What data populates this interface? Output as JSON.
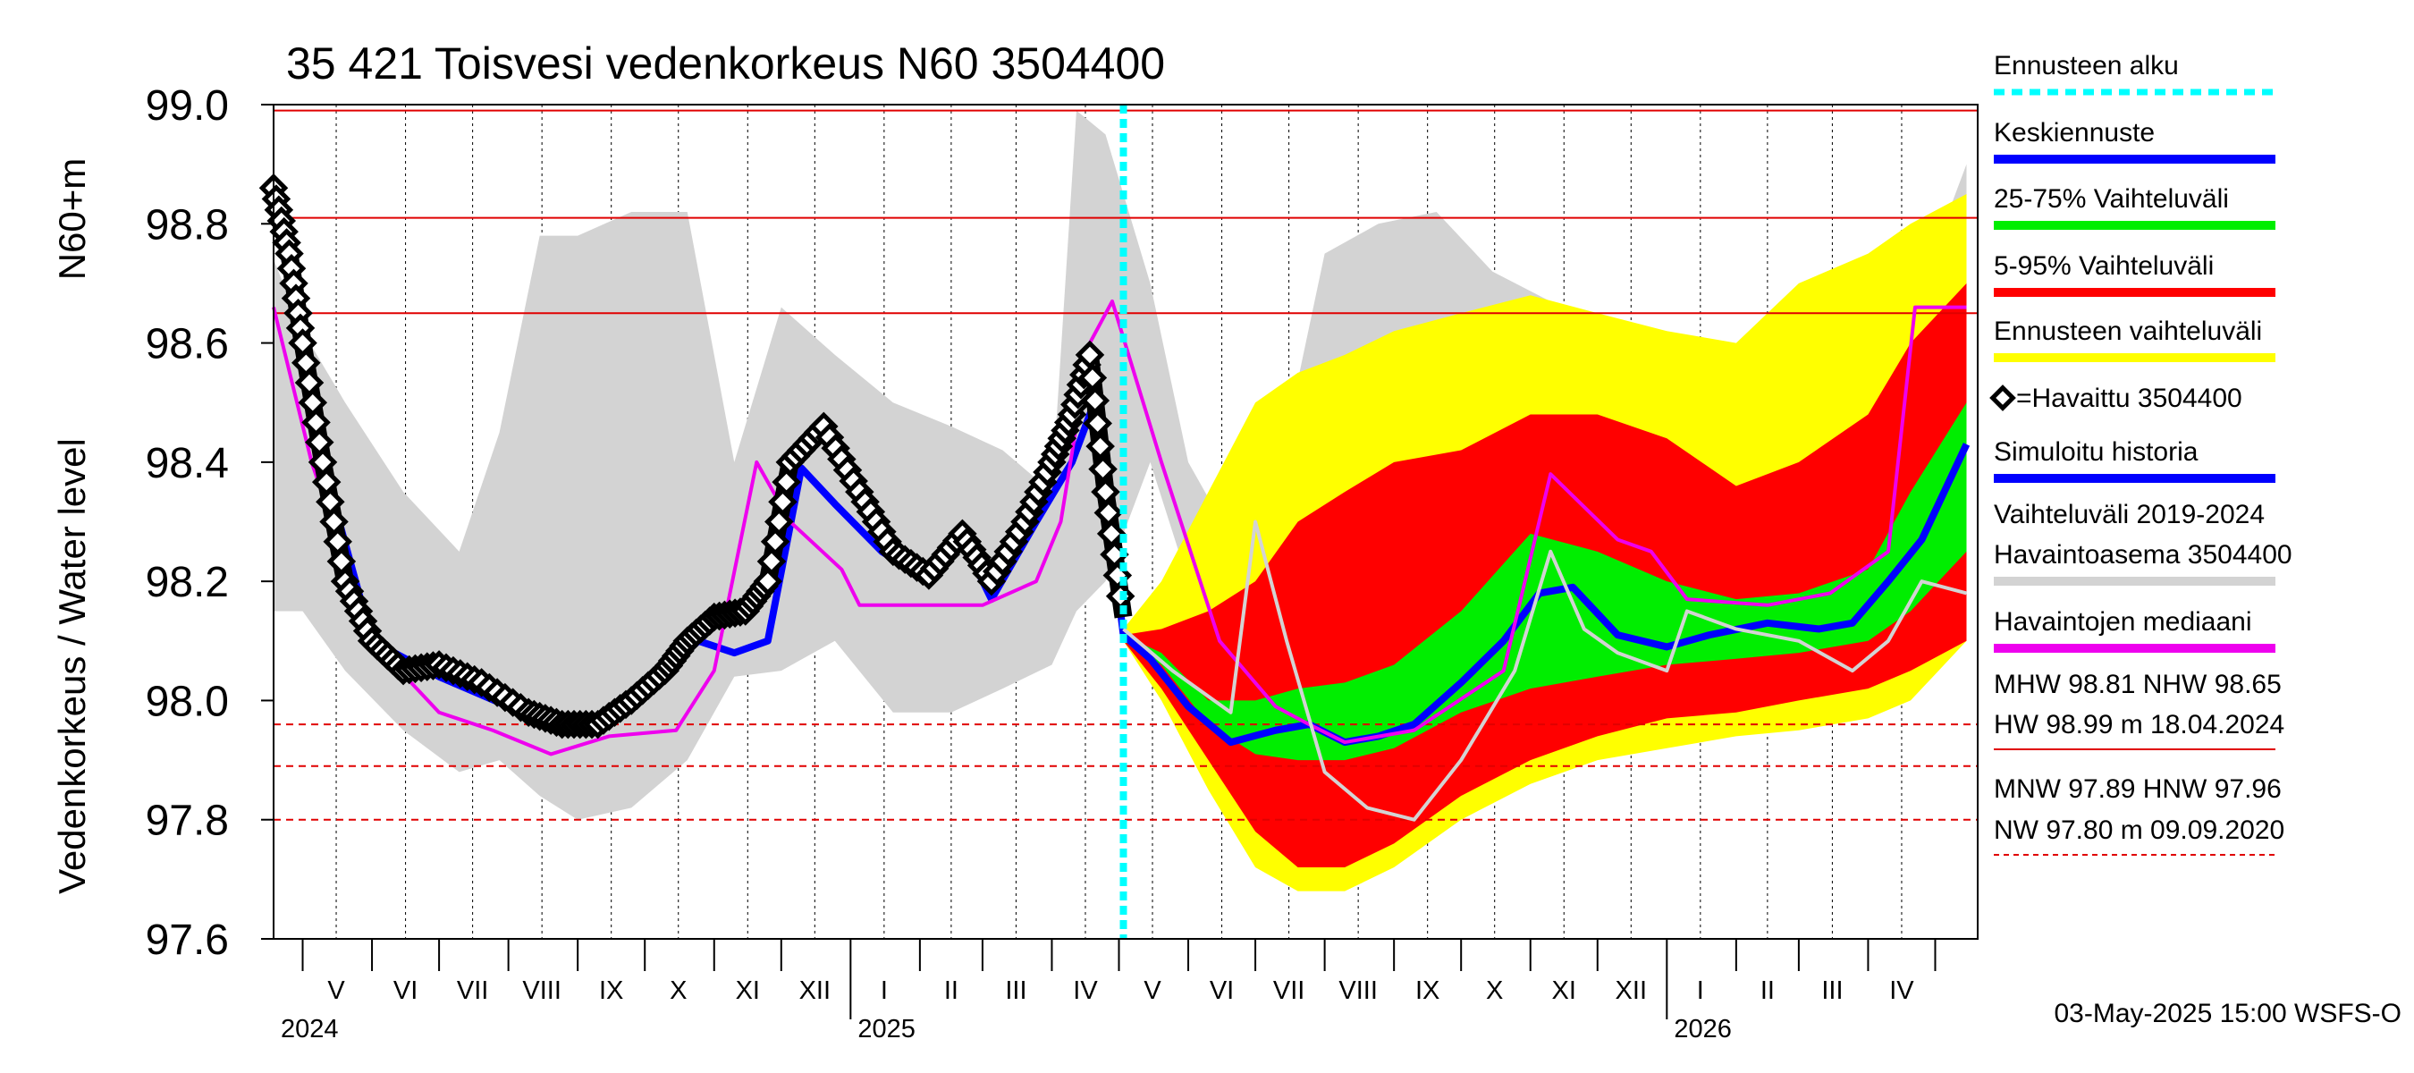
{
  "chart_data": {
    "type": "area",
    "title": "35 421 Toisvesi vedenkorkeus N60 3504400",
    "ylabel": "Vedenkorkeus / Water level",
    "ylabel_unit": "N60+m",
    "ylim": [
      97.6,
      99.0
    ],
    "yticks": [
      "99.0",
      "98.8",
      "98.6",
      "98.4",
      "98.2",
      "98.0",
      "97.8",
      "97.6"
    ],
    "x_start": "2024-04-18",
    "x_end": "2026-05-20",
    "forecast_start": "2025-05-03",
    "months": [
      {
        "label": "V",
        "date": "2024-05-16"
      },
      {
        "label": "VI",
        "date": "2024-06-16"
      },
      {
        "label": "VII",
        "date": "2024-07-16"
      },
      {
        "label": "VIII",
        "date": "2024-08-16"
      },
      {
        "label": "IX",
        "date": "2024-09-16"
      },
      {
        "label": "X",
        "date": "2024-10-16"
      },
      {
        "label": "XI",
        "date": "2024-11-16"
      },
      {
        "label": "XII",
        "date": "2024-12-16"
      },
      {
        "label": "I",
        "date": "2025-01-16"
      },
      {
        "label": "II",
        "date": "2025-02-15"
      },
      {
        "label": "III",
        "date": "2025-03-16"
      },
      {
        "label": "IV",
        "date": "2025-04-16"
      },
      {
        "label": "V",
        "date": "2025-05-16"
      },
      {
        "label": "VI",
        "date": "2025-06-16"
      },
      {
        "label": "VII",
        "date": "2025-07-16"
      },
      {
        "label": "VIII",
        "date": "2025-08-16"
      },
      {
        "label": "IX",
        "date": "2025-09-16"
      },
      {
        "label": "X",
        "date": "2025-10-16"
      },
      {
        "label": "XI",
        "date": "2025-11-16"
      },
      {
        "label": "XII",
        "date": "2025-12-16"
      },
      {
        "label": "I",
        "date": "2026-01-16"
      },
      {
        "label": "II",
        "date": "2026-02-15"
      },
      {
        "label": "III",
        "date": "2026-03-16"
      },
      {
        "label": "IV",
        "date": "2026-04-16"
      }
    ],
    "years": [
      {
        "label": "2024",
        "date": "2024-04-18"
      },
      {
        "label": "2025",
        "date": "2025-01-01"
      },
      {
        "label": "2026",
        "date": "2026-01-01"
      }
    ],
    "ref_lines": [
      {
        "name": "HW",
        "value": 98.99,
        "style": "solid"
      },
      {
        "name": "MHW",
        "value": 98.81,
        "style": "solid"
      },
      {
        "name": "NHW",
        "value": 98.65,
        "style": "solid"
      },
      {
        "name": "HNW",
        "value": 97.96,
        "style": "dashed"
      },
      {
        "name": "MNW",
        "value": 97.89,
        "style": "dashed"
      },
      {
        "name": "NW",
        "value": 97.8,
        "style": "dashed"
      }
    ],
    "series": [
      {
        "name": "Vaihteluväli 2019-2024 Havaintoasema 3504400",
        "color": "#d3d3d3",
        "x": [
          "2024-04-18",
          "2024-05-01",
          "2024-05-20",
          "2024-06-15",
          "2024-07-10",
          "2024-07-28",
          "2024-08-15",
          "2024-09-01",
          "2024-09-25",
          "2024-10-20",
          "2024-11-10",
          "2024-12-01",
          "2024-12-25",
          "2025-01-20",
          "2025-02-15",
          "2025-03-10",
          "2025-04-01",
          "2025-04-12",
          "2025-04-25",
          "2025-05-15",
          "2025-06-01",
          "2025-07-01",
          "2025-08-01",
          "2025-08-25",
          "2025-09-20",
          "2025-10-15",
          "2025-11-15",
          "2025-12-15",
          "2026-01-15",
          "2026-02-15",
          "2026-03-15",
          "2026-04-15",
          "2026-05-15"
        ],
        "upper": [
          98.74,
          98.62,
          98.5,
          98.35,
          98.25,
          98.45,
          98.78,
          98.78,
          98.82,
          98.82,
          98.4,
          98.66,
          98.58,
          98.5,
          98.46,
          98.42,
          98.35,
          98.99,
          98.95,
          98.7,
          98.4,
          98.2,
          98.75,
          98.8,
          98.82,
          98.72,
          98.66,
          98.58,
          98.55,
          98.5,
          98.5,
          98.6,
          98.9
        ],
        "lower": [
          98.15,
          98.15,
          98.05,
          97.95,
          97.88,
          97.9,
          97.84,
          97.8,
          97.82,
          97.9,
          98.04,
          98.05,
          98.1,
          97.98,
          97.98,
          98.02,
          98.06,
          98.15,
          98.2,
          98.4,
          98.2,
          97.96,
          97.85,
          97.84,
          97.85,
          97.86,
          98.0,
          98.02,
          98.01,
          98.01,
          98.01,
          98.0,
          98.15
        ]
      },
      {
        "name": "Ennusteen vaihteluväli",
        "color": "#ffff00",
        "x": [
          "2025-05-03",
          "2025-05-20",
          "2025-06-10",
          "2025-07-01",
          "2025-07-20",
          "2025-08-10",
          "2025-09-01",
          "2025-10-01",
          "2025-11-01",
          "2025-12-01",
          "2026-01-01",
          "2026-02-01",
          "2026-03-01",
          "2026-04-01",
          "2026-04-20",
          "2026-05-15"
        ],
        "upper": [
          98.12,
          98.2,
          98.35,
          98.5,
          98.55,
          98.58,
          98.62,
          98.65,
          98.68,
          98.65,
          98.62,
          98.6,
          98.7,
          98.75,
          98.8,
          98.85
        ],
        "lower": [
          98.1,
          98.0,
          97.85,
          97.72,
          97.68,
          97.68,
          97.72,
          97.8,
          97.86,
          97.9,
          97.92,
          97.94,
          97.95,
          97.97,
          98.0,
          98.1
        ]
      },
      {
        "name": "5-95% Vaihteluväli",
        "color": "#ff0000",
        "x": [
          "2025-05-03",
          "2025-05-20",
          "2025-06-10",
          "2025-07-01",
          "2025-07-20",
          "2025-08-10",
          "2025-09-01",
          "2025-10-01",
          "2025-11-01",
          "2025-12-01",
          "2026-01-01",
          "2026-02-01",
          "2026-03-01",
          "2026-04-01",
          "2026-04-20",
          "2026-05-15"
        ],
        "upper": [
          98.11,
          98.12,
          98.15,
          98.2,
          98.3,
          98.35,
          98.4,
          98.42,
          98.48,
          98.48,
          98.44,
          98.36,
          98.4,
          98.48,
          98.6,
          98.7
        ],
        "lower": [
          98.1,
          98.02,
          97.9,
          97.78,
          97.72,
          97.72,
          97.76,
          97.84,
          97.9,
          97.94,
          97.97,
          97.98,
          98.0,
          98.02,
          98.05,
          98.1
        ]
      },
      {
        "name": "25-75% Vaihteluväli",
        "color": "#00ee00",
        "x": [
          "2025-05-03",
          "2025-05-20",
          "2025-06-10",
          "2025-07-01",
          "2025-07-20",
          "2025-08-10",
          "2025-09-01",
          "2025-10-01",
          "2025-11-01",
          "2025-12-01",
          "2026-01-01",
          "2026-02-01",
          "2026-03-01",
          "2026-04-01",
          "2026-04-20",
          "2026-05-15"
        ],
        "upper": [
          98.11,
          98.08,
          98.0,
          98.0,
          98.02,
          98.03,
          98.06,
          98.15,
          98.28,
          98.25,
          98.2,
          98.17,
          98.18,
          98.22,
          98.35,
          98.5
        ],
        "lower": [
          98.1,
          98.06,
          97.96,
          97.91,
          97.9,
          97.9,
          97.92,
          97.98,
          98.02,
          98.04,
          98.06,
          98.07,
          98.08,
          98.1,
          98.15,
          98.25
        ]
      },
      {
        "name": "Keskiennuste",
        "color": "#0000ff",
        "x": [
          "2025-05-03",
          "2025-05-15",
          "2025-06-01",
          "2025-06-20",
          "2025-07-10",
          "2025-07-25",
          "2025-08-10",
          "2025-08-25",
          "2025-09-10",
          "2025-10-01",
          "2025-10-20",
          "2025-11-05",
          "2025-11-20",
          "2025-12-10",
          "2026-01-01",
          "2026-01-20",
          "2026-02-15",
          "2026-03-10",
          "2026-03-25",
          "2026-04-10",
          "2026-04-25",
          "2026-05-15"
        ],
        "y": [
          98.11,
          98.07,
          97.99,
          97.93,
          97.95,
          97.96,
          97.93,
          97.94,
          97.96,
          98.03,
          98.1,
          98.18,
          98.19,
          98.11,
          98.09,
          98.11,
          98.13,
          98.12,
          98.13,
          98.2,
          98.27,
          98.43
        ]
      },
      {
        "name": "Simuloitu historia",
        "color": "#0000ff",
        "x": [
          "2024-04-18",
          "2024-05-10",
          "2024-06-01",
          "2024-07-01",
          "2024-08-01",
          "2024-09-01",
          "2024-10-01",
          "2024-10-25",
          "2024-11-10",
          "2024-11-25",
          "2024-12-10",
          "2024-12-25",
          "2025-01-15",
          "2025-02-01",
          "2025-02-20",
          "2025-03-05",
          "2025-03-25",
          "2025-04-10",
          "2025-04-20",
          "2025-05-03"
        ],
        "y": [
          98.84,
          98.4,
          98.1,
          98.04,
          97.99,
          97.95,
          98.02,
          98.1,
          98.08,
          98.1,
          98.39,
          98.33,
          98.25,
          98.21,
          98.27,
          98.17,
          98.3,
          98.4,
          98.5,
          98.11
        ]
      },
      {
        "name": "Havaintojen mediaani",
        "color": "#ee00ee",
        "x": [
          "2024-04-18",
          "2024-05-05",
          "2024-06-01",
          "2024-07-01",
          "2024-07-25",
          "2024-08-20",
          "2024-09-15",
          "2024-10-15",
          "2024-11-01",
          "2024-11-20",
          "2024-12-05",
          "2024-12-28",
          "2025-01-05",
          "2025-02-01",
          "2025-03-01",
          "2025-03-25",
          "2025-04-05",
          "2025-04-18",
          "2025-04-28",
          "2025-05-20",
          "2025-06-15",
          "2025-07-10",
          "2025-07-25",
          "2025-08-10",
          "2025-09-10",
          "2025-10-20",
          "2025-11-10",
          "2025-12-10",
          "2025-12-25",
          "2026-01-10",
          "2026-02-15",
          "2026-03-15",
          "2026-04-10",
          "2026-04-22",
          "2026-05-15"
        ],
        "y": [
          98.66,
          98.4,
          98.1,
          97.98,
          97.95,
          97.91,
          97.94,
          97.95,
          98.05,
          98.4,
          98.3,
          98.22,
          98.16,
          98.16,
          98.16,
          98.2,
          98.3,
          98.6,
          98.67,
          98.4,
          98.1,
          97.99,
          97.96,
          97.93,
          97.95,
          98.05,
          98.38,
          98.27,
          98.25,
          98.17,
          98.16,
          98.18,
          98.25,
          98.66,
          98.66
        ]
      },
      {
        "name": "Havaittu 3504400",
        "color": "#000000",
        "x": [
          "2024-04-18",
          "2024-04-25",
          "2024-05-01",
          "2024-05-10",
          "2024-05-20",
          "2024-06-01",
          "2024-06-15",
          "2024-07-01",
          "2024-07-20",
          "2024-08-10",
          "2024-08-25",
          "2024-09-10",
          "2024-09-25",
          "2024-10-10",
          "2024-10-20",
          "2024-11-01",
          "2024-11-15",
          "2024-11-25",
          "2024-12-05",
          "2024-12-20",
          "2025-01-05",
          "2025-01-20",
          "2025-02-05",
          "2025-02-20",
          "2025-03-05",
          "2025-03-20",
          "2025-04-01",
          "2025-04-10",
          "2025-04-18",
          "2025-04-25",
          "2025-05-03"
        ],
        "y": [
          98.86,
          98.75,
          98.6,
          98.4,
          98.2,
          98.1,
          98.05,
          98.06,
          98.03,
          97.98,
          97.96,
          97.96,
          98.0,
          98.05,
          98.1,
          98.14,
          98.15,
          98.2,
          98.4,
          98.46,
          98.35,
          98.25,
          98.21,
          98.28,
          98.2,
          98.3,
          98.4,
          98.48,
          98.58,
          98.35,
          98.14
        ]
      },
      {
        "name": "Ensemble member",
        "color": "#d3d3d3",
        "x": [
          "2025-05-03",
          "2025-05-25",
          "2025-06-20",
          "2025-07-01",
          "2025-07-15",
          "2025-08-01",
          "2025-08-20",
          "2025-09-10",
          "2025-10-01",
          "2025-10-25",
          "2025-11-10",
          "2025-11-25",
          "2025-12-10",
          "2026-01-01",
          "2026-01-10",
          "2026-02-01",
          "2026-03-01",
          "2026-03-25",
          "2026-04-10",
          "2026-04-25",
          "2026-05-15"
        ],
        "y": [
          98.12,
          98.05,
          97.98,
          98.3,
          98.1,
          97.88,
          97.82,
          97.8,
          97.9,
          98.05,
          98.25,
          98.12,
          98.08,
          98.05,
          98.15,
          98.12,
          98.1,
          98.05,
          98.1,
          98.2,
          98.18
        ]
      }
    ],
    "legend": [
      {
        "label": "Ennusteen alku",
        "color": "#00ffff",
        "kind": "dash"
      },
      {
        "label": "Keskiennuste",
        "color": "#0000ff",
        "kind": "line"
      },
      {
        "label": "25-75% Vaihteluväli",
        "color": "#00ee00",
        "kind": "line"
      },
      {
        "label": "5-95% Vaihteluväli",
        "color": "#ff0000",
        "kind": "line"
      },
      {
        "label": "Ennusteen vaihteluväli",
        "color": "#ffff00",
        "kind": "line"
      },
      {
        "label": "=Havaittu 3504400",
        "color": "#000000",
        "kind": "diamond"
      },
      {
        "label": "Simuloitu historia",
        "color": "#0000ff",
        "kind": "line"
      },
      {
        "label": "Vaihteluväli 2019-2024",
        "color": "#d3d3d3",
        "kind": "none"
      },
      {
        "label": " Havaintoasema 3504400",
        "color": "#d3d3d3",
        "kind": "line"
      },
      {
        "label": "Havaintojen mediaani",
        "color": "#ee00ee",
        "kind": "line"
      }
    ],
    "stats": [
      {
        "label": "MHW  98.81 NHW  98.65",
        "rule": "none"
      },
      {
        "label": "HW  98.99 m 18.04.2024",
        "rule": "solid"
      },
      {
        "label": "MNW  97.89 HNW  97.96",
        "rule": "none"
      },
      {
        "label": "NW  97.80 m 09.09.2020",
        "rule": "dashed"
      }
    ],
    "footer": "03-May-2025 15:00 WSFS-O"
  }
}
